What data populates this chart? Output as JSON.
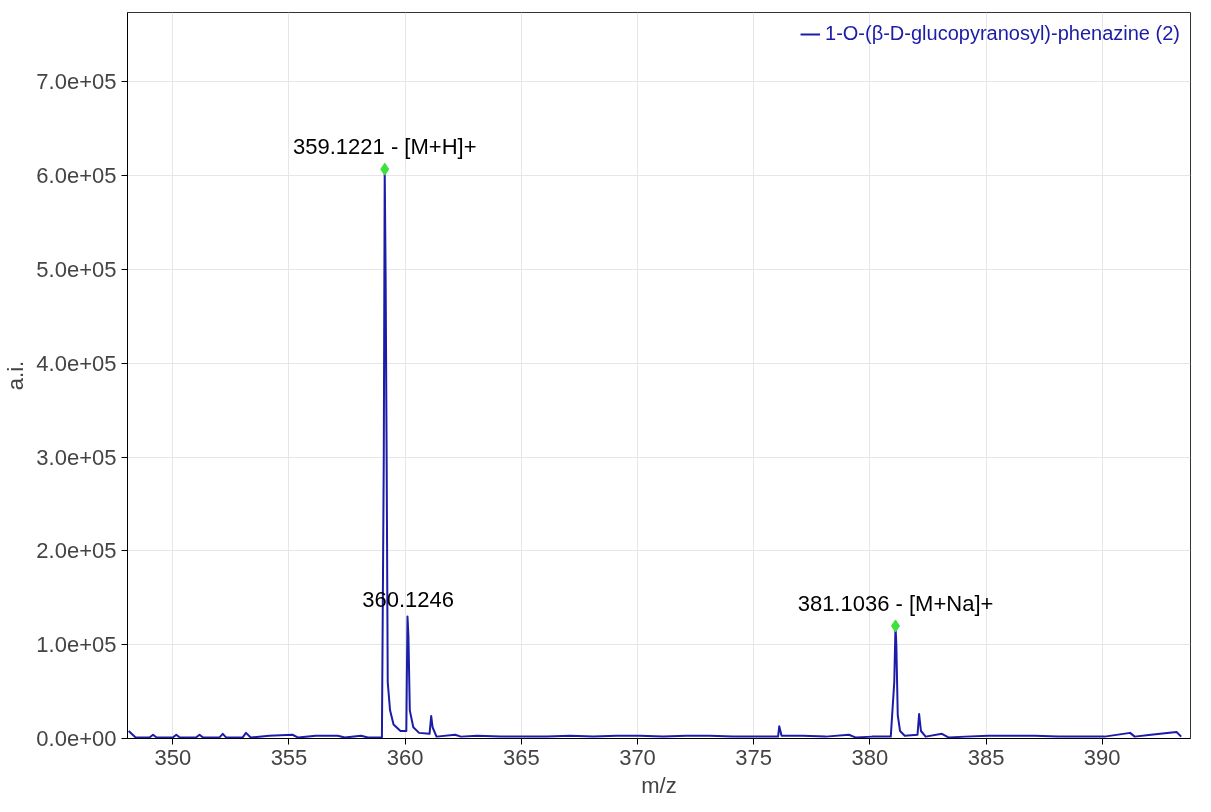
{
  "chart_data": {
    "type": "line",
    "xlabel": "m/z",
    "ylabel": "a.i.",
    "xlim": [
      348.05,
      393.8
    ],
    "ylim": [
      0,
      774000
    ],
    "xticks": [
      350,
      355,
      360,
      365,
      370,
      375,
      380,
      385,
      390
    ],
    "yticks": [
      {
        "value": 0,
        "label": "0.0e+00"
      },
      {
        "value": 100000,
        "label": "1.0e+05"
      },
      {
        "value": 200000,
        "label": "2.0e+05"
      },
      {
        "value": 300000,
        "label": "3.0e+05"
      },
      {
        "value": 400000,
        "label": "4.0e+05"
      },
      {
        "value": 500000,
        "label": "5.0e+05"
      },
      {
        "value": 600000,
        "label": "6.0e+05"
      },
      {
        "value": 700000,
        "label": "7.0e+05"
      }
    ],
    "grid": true,
    "legend": "top right",
    "series": [
      {
        "name": "1-O-(β-D-glucopyranosyl)-phenazine (2)",
        "color": "#1c1ca8",
        "x": [
          348.1,
          348.4,
          349.0,
          349.15,
          349.3,
          350.0,
          350.15,
          350.3,
          351.0,
          351.15,
          351.3,
          352.0,
          352.15,
          352.3,
          353.0,
          353.15,
          353.35,
          354.15,
          355.15,
          355.4,
          356.15,
          357.1,
          357.4,
          358.1,
          358.4,
          359.0,
          359.08,
          359.12,
          359.16,
          359.2,
          359.25,
          359.35,
          359.5,
          359.8,
          360.05,
          360.1,
          360.14,
          360.2,
          360.35,
          360.6,
          361.05,
          361.12,
          361.18,
          361.35,
          362.15,
          362.4,
          363.1,
          364.1,
          365.1,
          366.1,
          367.1,
          368.1,
          369.1,
          370.1,
          371.1,
          372.1,
          373.1,
          374.1,
          375.1,
          376.05,
          376.1,
          376.2,
          377.1,
          378.1,
          379.1,
          379.4,
          380.1,
          380.9,
          381.05,
          381.1036,
          381.14,
          381.2,
          381.3,
          381.5,
          382.05,
          382.12,
          382.2,
          382.4,
          383.1,
          383.4,
          384.1,
          385.1,
          386.1,
          387.1,
          388.1,
          389.1,
          390.1,
          391.2,
          391.4,
          392.1,
          393.2,
          393.4
        ],
        "values": [
          8000,
          1000,
          1000,
          4000,
          1000,
          1000,
          4000,
          1000,
          1000,
          4000,
          1000,
          1000,
          5000,
          1000,
          1000,
          6000,
          1000,
          3000,
          4000,
          1000,
          3000,
          3000,
          1000,
          3000,
          1000,
          1000,
          300000,
          607000,
          490000,
          315000,
          60000,
          30000,
          15000,
          8000,
          8000,
          130000,
          110000,
          30000,
          12000,
          6000,
          5000,
          24000,
          12000,
          2000,
          4000,
          2000,
          3000,
          2000,
          2000,
          2000,
          3000,
          2000,
          3000,
          3000,
          2000,
          3000,
          3000,
          2000,
          2000,
          2000,
          13000,
          3000,
          3000,
          2000,
          4000,
          1000,
          2000,
          2000,
          60000,
          120000,
          100000,
          25000,
          8000,
          3000,
          4000,
          26000,
          8000,
          2000,
          5000,
          1000,
          2000,
          3000,
          3000,
          3000,
          2000,
          2000,
          2000,
          6000,
          2000,
          4000,
          7000,
          2000
        ]
      },
      {
        "type": "scatter",
        "marker": "diamond",
        "color": "#3ee03e",
        "x": [
          359.1221,
          381.1036
        ],
        "values": [
          607000,
          120000
        ]
      }
    ],
    "annotations": [
      {
        "text": "359.1221 - [M+H]+",
        "x": 359.1221,
        "y": 607000
      },
      {
        "text": "360.1246",
        "x": 360.1246,
        "y": 130000
      },
      {
        "text": "381.1036 - [M+Na]+",
        "x": 381.1036,
        "y": 120000
      }
    ]
  }
}
